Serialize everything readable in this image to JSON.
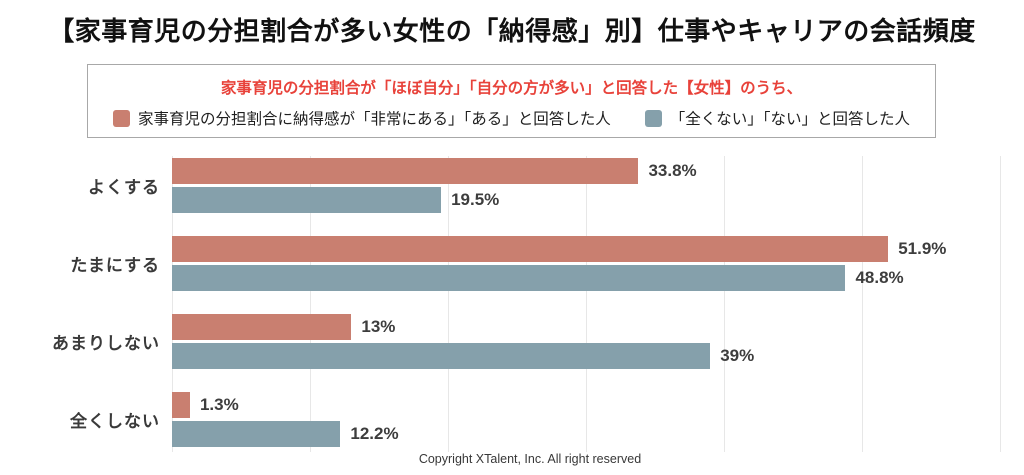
{
  "title": "【家事育児の分担割合が多い女性の「納得感」別】仕事やキャリアの会話頻度",
  "legend": {
    "heading": "家事育児の分担割合が「ほぼ自分」「自分の方が多い」と回答した【女性】のうち、",
    "items": [
      {
        "label": "家事育児の分担割合に納得感が「非常にある」「ある」と回答した人",
        "color": "#c97f70"
      },
      {
        "label": "「全くない」「ない」と回答した人",
        "color": "#85a0ab"
      }
    ]
  },
  "chart_data": {
    "type": "bar",
    "orientation": "horizontal",
    "title": "【家事育児の分担割合が多い女性の「納得感」別】仕事やキャリアの会話頻度",
    "categories": [
      "よくする",
      "たまにする",
      "あまりしない",
      "全くしない"
    ],
    "series": [
      {
        "name": "家事育児の分担割合に納得感が「非常にある」「ある」と回答した人",
        "color": "#c97f70",
        "values": [
          33.8,
          51.9,
          13,
          1.3
        ],
        "value_labels": [
          "33.8%",
          "51.9%",
          "13%",
          "1.3%"
        ]
      },
      {
        "name": "「全くない」「ない」と回答した人",
        "color": "#85a0ab",
        "values": [
          19.5,
          48.8,
          39,
          12.2
        ],
        "value_labels": [
          "19.5%",
          "48.8%",
          "39%",
          "12.2%"
        ]
      }
    ],
    "xlim": [
      0,
      60
    ],
    "gridline_step": 10,
    "grid": true,
    "value_label_position": "right-of-bar",
    "legend_position": "top-boxed",
    "axis_tick_labels_visible": false
  },
  "colors": {
    "legend_heading": "#e8423a",
    "gridline": "#e7e7e7",
    "text_dark": "#3d3d3d"
  },
  "copyright": "Copyright XTalent, Inc. All right reserved"
}
